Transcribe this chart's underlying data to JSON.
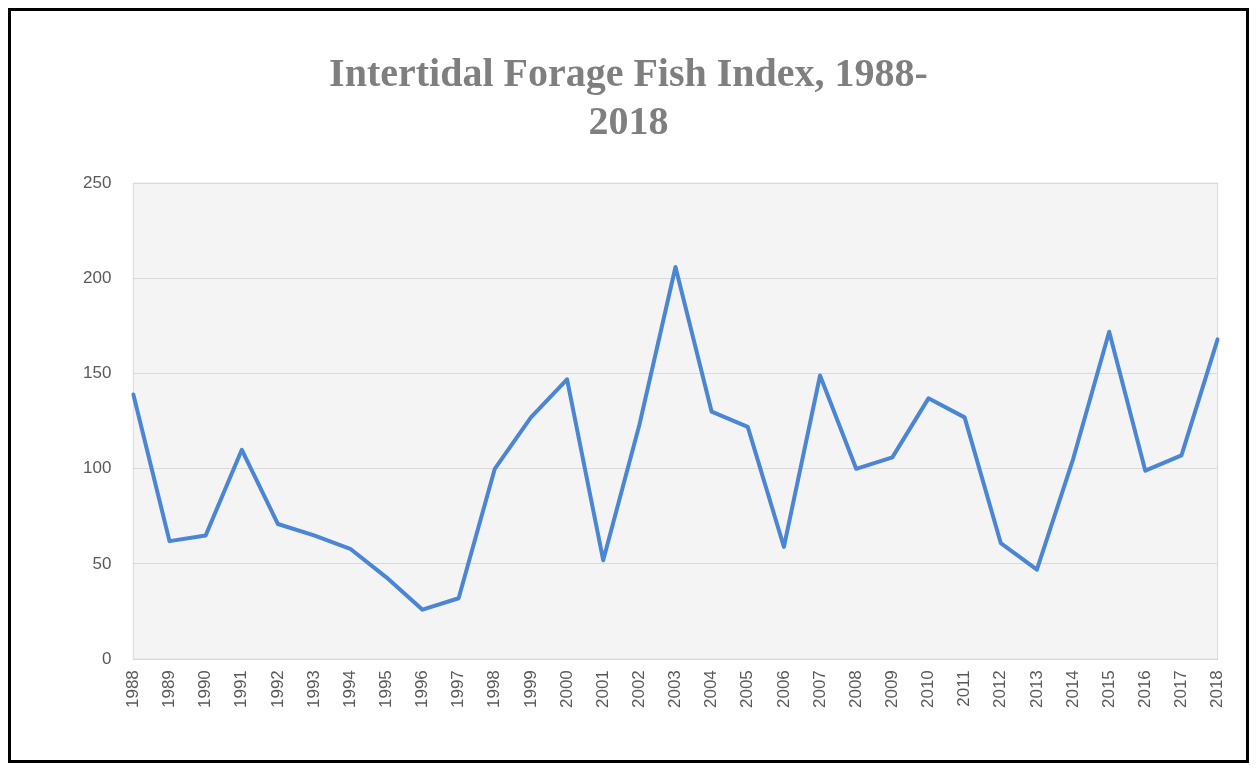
{
  "chart_data": {
    "type": "line",
    "title": "Intertidal Forage Fish Index, 1988-2018",
    "categories": [
      "1988",
      "1989",
      "1990",
      "1991",
      "1992",
      "1993",
      "1994",
      "1995",
      "1996",
      "1997",
      "1998",
      "1999",
      "2000",
      "2001",
      "2002",
      "2003",
      "2004",
      "2005",
      "2006",
      "2007",
      "2008",
      "2009",
      "2010",
      "2011",
      "2012",
      "2013",
      "2014",
      "2015",
      "2016",
      "2017",
      "2018"
    ],
    "series": [
      {
        "color": "#4a86d4",
        "values": [
          139,
          62,
          65,
          110,
          71,
          65,
          58,
          43,
          26,
          32,
          100,
          127,
          147,
          52,
          123,
          206,
          130,
          122,
          59,
          149,
          100,
          106,
          137,
          127,
          61,
          47,
          105,
          172,
          99,
          107,
          168
        ]
      }
    ],
    "ylim": [
      0,
      250
    ],
    "yticks": [
      0,
      50,
      100,
      150,
      200,
      250
    ],
    "grid": "y",
    "legend": false,
    "marker": "none",
    "line_style": "solid"
  }
}
